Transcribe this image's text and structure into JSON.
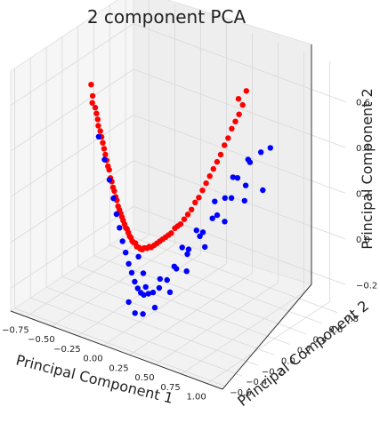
{
  "chart_data": {
    "type": "scatter",
    "projection": "3d",
    "title": "2 component PCA",
    "xlabel": "Principal Component 1",
    "ylabel": "Principal Component 2",
    "zlabel": "Principal Component 2",
    "x_ticks": [
      "−0.75",
      "−0.50",
      "−0.25",
      "0.00",
      "0.25",
      "0.50",
      "0.75",
      "1.00"
    ],
    "y_ticks": [
      "−0.6",
      "−0.4",
      "−0.2",
      "0.0",
      "0.2",
      "0.4",
      "0.6",
      "0.8"
    ],
    "z_ticks": [
      "−0.2",
      "0.0",
      "0.2",
      "0.4",
      "0.6"
    ],
    "xlim": [
      -0.9,
      1.15
    ],
    "ylim": [
      -0.65,
      0.9
    ],
    "zlim": [
      -0.3,
      0.75
    ],
    "grid": true,
    "series": [
      {
        "color": "#ff0000",
        "points": [
          [
            -0.85,
            0.3,
            0.48
          ],
          [
            -0.82,
            0.28,
            0.44
          ],
          [
            -0.78,
            0.26,
            0.4
          ],
          [
            -0.74,
            0.24,
            0.36
          ],
          [
            -0.7,
            0.22,
            0.32
          ],
          [
            -0.66,
            0.2,
            0.28
          ],
          [
            -0.62,
            0.18,
            0.24
          ],
          [
            -0.58,
            0.16,
            0.2
          ],
          [
            -0.54,
            0.14,
            0.16
          ],
          [
            -0.5,
            0.12,
            0.13
          ],
          [
            -0.46,
            0.1,
            0.1
          ],
          [
            -0.42,
            0.08,
            0.07
          ],
          [
            -0.38,
            0.06,
            0.05
          ],
          [
            -0.34,
            0.04,
            0.03
          ],
          [
            -0.3,
            0.02,
            0.01
          ],
          [
            -0.26,
            0.0,
            0.0
          ],
          [
            -0.22,
            -0.02,
            -0.01
          ],
          [
            -0.18,
            -0.04,
            -0.02
          ],
          [
            -0.14,
            -0.05,
            -0.03
          ],
          [
            -0.1,
            -0.06,
            -0.03
          ],
          [
            -0.06,
            -0.06,
            -0.02
          ],
          [
            -0.02,
            -0.05,
            -0.01
          ],
          [
            0.02,
            -0.04,
            0.0
          ],
          [
            0.06,
            -0.02,
            0.02
          ],
          [
            0.1,
            0.0,
            0.04
          ],
          [
            0.14,
            0.02,
            0.06
          ],
          [
            0.18,
            0.05,
            0.09
          ],
          [
            0.22,
            0.08,
            0.12
          ],
          [
            0.26,
            0.12,
            0.16
          ],
          [
            0.3,
            0.16,
            0.21
          ],
          [
            0.34,
            0.2,
            0.27
          ],
          [
            0.38,
            0.24,
            0.33
          ],
          [
            0.42,
            0.28,
            0.39
          ],
          [
            0.46,
            0.32,
            0.46
          ],
          [
            0.5,
            0.36,
            0.53
          ],
          [
            0.54,
            0.4,
            0.6
          ],
          [
            -0.8,
            0.25,
            0.42
          ],
          [
            -0.72,
            0.22,
            0.34
          ],
          [
            -0.64,
            0.19,
            0.26
          ],
          [
            -0.56,
            0.15,
            0.19
          ],
          [
            -0.48,
            0.11,
            0.12
          ],
          [
            -0.4,
            0.07,
            0.06
          ],
          [
            -0.32,
            0.03,
            0.02
          ],
          [
            -0.24,
            -0.01,
            -0.01
          ],
          [
            -0.16,
            -0.04,
            -0.02
          ],
          [
            -0.08,
            -0.06,
            -0.03
          ],
          [
            0.0,
            -0.05,
            -0.01
          ],
          [
            0.08,
            -0.01,
            0.03
          ],
          [
            0.16,
            0.04,
            0.08
          ],
          [
            0.24,
            0.1,
            0.14
          ],
          [
            0.32,
            0.18,
            0.24
          ],
          [
            0.4,
            0.26,
            0.36
          ],
          [
            0.48,
            0.34,
            0.5
          ],
          [
            0.56,
            0.42,
            0.66
          ],
          [
            0.44,
            0.3,
            0.43
          ],
          [
            0.36,
            0.22,
            0.3
          ],
          [
            0.28,
            0.14,
            0.19
          ],
          [
            0.2,
            0.06,
            0.1
          ],
          [
            0.12,
            0.01,
            0.05
          ],
          [
            0.04,
            -0.03,
            0.01
          ],
          [
            -0.04,
            -0.05,
            -0.02
          ],
          [
            -0.12,
            -0.05,
            -0.03
          ],
          [
            -0.2,
            -0.03,
            -0.02
          ],
          [
            -0.28,
            0.01,
            0.01
          ],
          [
            -0.36,
            0.05,
            0.04
          ],
          [
            -0.44,
            0.09,
            0.09
          ],
          [
            -0.52,
            0.13,
            0.15
          ],
          [
            -0.6,
            0.17,
            0.22
          ],
          [
            -0.68,
            0.21,
            0.3
          ],
          [
            -0.76,
            0.25,
            0.38
          ],
          [
            0.52,
            0.38,
            0.56
          ],
          [
            0.5,
            0.4,
            0.62
          ]
        ]
      },
      {
        "color": "#0000ff",
        "points": [
          [
            -0.7,
            0.2,
            0.3
          ],
          [
            -0.62,
            0.17,
            0.22
          ],
          [
            -0.55,
            0.14,
            0.15
          ],
          [
            -0.48,
            0.1,
            0.09
          ],
          [
            -0.42,
            0.06,
            0.04
          ],
          [
            -0.36,
            0.02,
            0.0
          ],
          [
            -0.3,
            -0.02,
            -0.04
          ],
          [
            -0.24,
            -0.06,
            -0.07
          ],
          [
            -0.18,
            -0.1,
            -0.1
          ],
          [
            -0.12,
            -0.14,
            -0.12
          ],
          [
            -0.06,
            -0.18,
            -0.14
          ],
          [
            0.0,
            -0.22,
            -0.15
          ],
          [
            0.06,
            -0.26,
            -0.15
          ],
          [
            0.12,
            -0.3,
            -0.14
          ],
          [
            0.18,
            -0.32,
            -0.12
          ],
          [
            0.24,
            -0.34,
            -0.1
          ],
          [
            0.3,
            -0.34,
            -0.07
          ],
          [
            0.36,
            -0.32,
            -0.03
          ],
          [
            0.42,
            -0.28,
            0.02
          ],
          [
            0.48,
            -0.22,
            0.08
          ],
          [
            0.54,
            -0.14,
            0.15
          ],
          [
            0.6,
            -0.06,
            0.22
          ],
          [
            0.66,
            0.02,
            0.3
          ],
          [
            0.72,
            0.1,
            0.38
          ],
          [
            0.78,
            0.18,
            0.44
          ],
          [
            0.84,
            0.24,
            0.48
          ],
          [
            0.9,
            0.28,
            0.5
          ],
          [
            0.2,
            -0.2,
            -0.08
          ],
          [
            0.3,
            -0.15,
            -0.02
          ],
          [
            0.4,
            -0.1,
            0.06
          ],
          [
            0.5,
            -0.05,
            0.14
          ],
          [
            0.6,
            0.0,
            0.22
          ],
          [
            0.7,
            0.05,
            0.3
          ],
          [
            0.8,
            0.1,
            0.36
          ],
          [
            0.1,
            -0.25,
            -0.12
          ],
          [
            0.0,
            -0.15,
            -0.1
          ],
          [
            -0.1,
            -0.08,
            -0.06
          ],
          [
            0.05,
            -0.4,
            -0.16
          ],
          [
            0.15,
            -0.45,
            -0.18
          ],
          [
            0.25,
            -0.48,
            -0.16
          ],
          [
            0.35,
            -0.46,
            -0.12
          ],
          [
            0.45,
            -0.4,
            -0.05
          ],
          [
            0.55,
            -0.32,
            0.04
          ],
          [
            0.65,
            -0.22,
            0.14
          ],
          [
            0.75,
            -0.1,
            0.24
          ],
          [
            0.85,
            0.02,
            0.32
          ],
          [
            0.95,
            0.12,
            0.36
          ],
          [
            0.4,
            0.0,
            0.12
          ],
          [
            0.5,
            0.1,
            0.24
          ],
          [
            0.6,
            0.2,
            0.34
          ],
          [
            0.7,
            0.26,
            0.42
          ],
          [
            0.3,
            -0.05,
            0.04
          ]
        ]
      }
    ]
  }
}
